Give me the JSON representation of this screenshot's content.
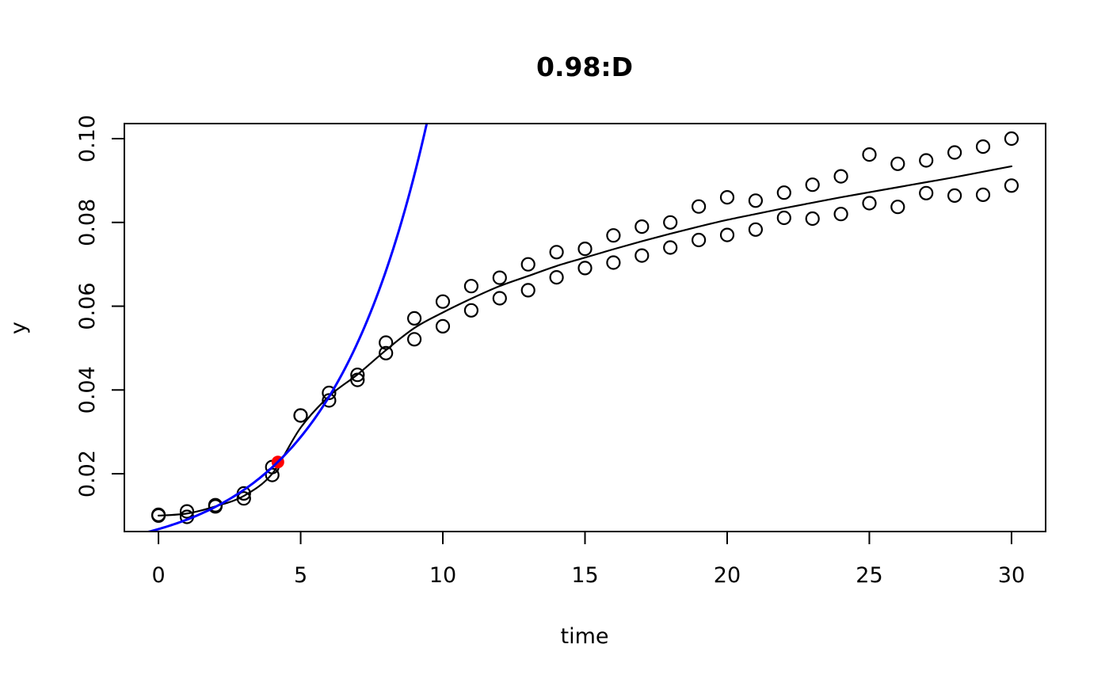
{
  "chart_data": {
    "type": "scatter",
    "title": "0.98:D",
    "xlabel": "time",
    "ylabel": "y",
    "xlim": [
      -1.2,
      31.2
    ],
    "ylim": [
      0.0062,
      0.1036
    ],
    "x_ticks": [
      0,
      5,
      10,
      15,
      20,
      25,
      30
    ],
    "y_ticks": [
      0.02,
      0.04,
      0.06,
      0.08,
      0.1
    ],
    "y_tick_labels": [
      "0.02",
      "0.04",
      "0.06",
      "0.08",
      "0.10"
    ],
    "grid": false,
    "legend": null,
    "x": [
      0,
      1,
      2,
      3,
      4,
      5,
      6,
      7,
      8,
      9,
      10,
      11,
      12,
      13,
      14,
      15,
      16,
      17,
      18,
      19,
      20,
      21,
      22,
      23,
      24,
      25,
      26,
      27,
      28,
      29,
      30
    ],
    "series": [
      {
        "name": "observations-upper",
        "type": "points",
        "marker": "open-circle",
        "color": "#000000",
        "values": [
          0.0102,
          0.011,
          0.0125,
          0.0153,
          0.0216,
          0.0339,
          0.0393,
          0.0436,
          0.0513,
          0.0571,
          0.0611,
          0.0648,
          0.0668,
          0.07,
          0.0729,
          0.0737,
          0.0769,
          0.079,
          0.08,
          0.0838,
          0.086,
          0.0852,
          0.0871,
          0.089,
          0.091,
          0.0962,
          0.094,
          0.0948,
          0.0967,
          0.0981,
          0.1
        ]
      },
      {
        "name": "observations-lower",
        "type": "points",
        "marker": "open-circle",
        "color": "#000000",
        "values": [
          0.01,
          0.0097,
          0.0122,
          0.0141,
          0.0197,
          0.0339,
          0.0375,
          0.0424,
          0.0488,
          0.0521,
          0.0552,
          0.059,
          0.0619,
          0.0638,
          0.0669,
          0.0691,
          0.0704,
          0.0721,
          0.074,
          0.0758,
          0.077,
          0.0783,
          0.0811,
          0.0809,
          0.082,
          0.0846,
          0.0837,
          0.087,
          0.0864,
          0.0866,
          0.0888
        ]
      },
      {
        "name": "fitted-curve",
        "type": "line",
        "color": "#000000",
        "values": [
          0.01,
          0.0105,
          0.0122,
          0.0147,
          0.02,
          0.031,
          0.0385,
          0.0437,
          0.0495,
          0.0548,
          0.0585,
          0.0618,
          0.0648,
          0.0672,
          0.0696,
          0.0716,
          0.0736,
          0.0755,
          0.0773,
          0.079,
          0.0806,
          0.082,
          0.0834,
          0.0847,
          0.086,
          0.0872,
          0.0884,
          0.0896,
          0.0908,
          0.0921,
          0.0934
        ]
      },
      {
        "name": "exponential-curve",
        "type": "function-line",
        "color": "#0000ff",
        "formula": "y = A * exp(r * t)",
        "A": 0.00678,
        "r": 0.289,
        "t_range": [
          -0.45,
          9.6
        ]
      },
      {
        "name": "highlight-point",
        "type": "point",
        "marker": "filled-circle",
        "color": "#ff0000",
        "x": 4.2,
        "y": 0.0228
      }
    ]
  }
}
